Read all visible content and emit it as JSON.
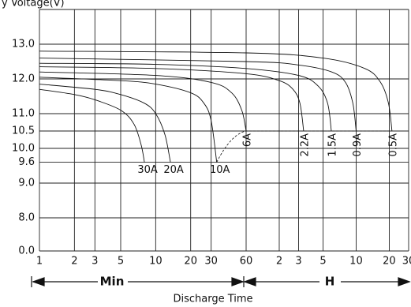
{
  "chart_data": {
    "type": "line",
    "ylabel": "y Voltage(V)",
    "xlabel": "Discharge Time",
    "x_units": [
      "Min",
      "H"
    ],
    "log_x": true,
    "grid": true,
    "xlim": [
      1,
      1800
    ],
    "xticks": [
      1,
      2,
      3,
      5,
      10,
      20,
      30,
      60,
      {
        "value": 120,
        "label": "2"
      },
      {
        "value": 180,
        "label": "3"
      },
      {
        "value": 300,
        "label": "5"
      },
      {
        "value": 600,
        "label": "10"
      },
      {
        "value": 1200,
        "label": "20"
      },
      {
        "value": 1800,
        "label": "30"
      }
    ],
    "ylim": [
      0,
      14
    ],
    "yticks": [
      {
        "value": 0,
        "label": "0.0"
      },
      {
        "value": 8,
        "label": "8.0"
      },
      {
        "value": 9,
        "label": "9.0"
      },
      9.6,
      {
        "value": 10,
        "label": "10.0"
      },
      10.5,
      {
        "value": 11,
        "label": "11.0"
      },
      {
        "value": 12,
        "label": "12.0"
      },
      {
        "value": 13,
        "label": "13.0"
      }
    ],
    "series": [
      {
        "name": "30A",
        "color": "#111111",
        "x": [
          1,
          2,
          3,
          5,
          6.5,
          7.5,
          8
        ],
        "values": [
          11.7,
          11.55,
          11.4,
          11.1,
          10.7,
          10.1,
          9.6
        ]
      },
      {
        "name": "20A",
        "color": "#111111",
        "x": [
          1,
          3,
          5,
          8,
          10,
          12,
          13.4
        ],
        "values": [
          11.85,
          11.7,
          11.55,
          11.3,
          11.0,
          10.4,
          9.6
        ]
      },
      {
        "name": "10A",
        "color": "#111111",
        "x": [
          1,
          5,
          10,
          20,
          26,
          30,
          33.5
        ],
        "values": [
          12.05,
          11.95,
          11.85,
          11.6,
          11.3,
          10.8,
          9.6
        ]
      },
      {
        "name": "6A",
        "color": "#111111",
        "x": [
          1,
          10,
          30,
          45,
          55,
          60
        ],
        "values": [
          12.2,
          12.1,
          11.9,
          11.6,
          11.1,
          10.5
        ]
      },
      {
        "name": "2.2A",
        "color": "#111111",
        "x": [
          1,
          10,
          60,
          120,
          160,
          185,
          200
        ],
        "values": [
          12.35,
          12.3,
          12.15,
          11.95,
          11.7,
          11.3,
          10.5
        ]
      },
      {
        "name": "1.5A",
        "color": "#111111",
        "x": [
          1,
          10,
          60,
          180,
          270,
          330,
          357
        ],
        "values": [
          12.45,
          12.42,
          12.3,
          12.1,
          11.8,
          11.3,
          10.5
        ]
      },
      {
        "name": "0.9A",
        "color": "#111111",
        "x": [
          1,
          60,
          180,
          360,
          480,
          560,
          600
        ],
        "values": [
          12.6,
          12.5,
          12.4,
          12.2,
          11.9,
          11.3,
          10.5
        ]
      },
      {
        "name": "0.5A",
        "color": "#111111",
        "x": [
          1,
          60,
          300,
          720,
          1000,
          1180,
          1270
        ],
        "values": [
          12.8,
          12.75,
          12.6,
          12.3,
          11.9,
          11.3,
          10.5
        ]
      }
    ]
  }
}
